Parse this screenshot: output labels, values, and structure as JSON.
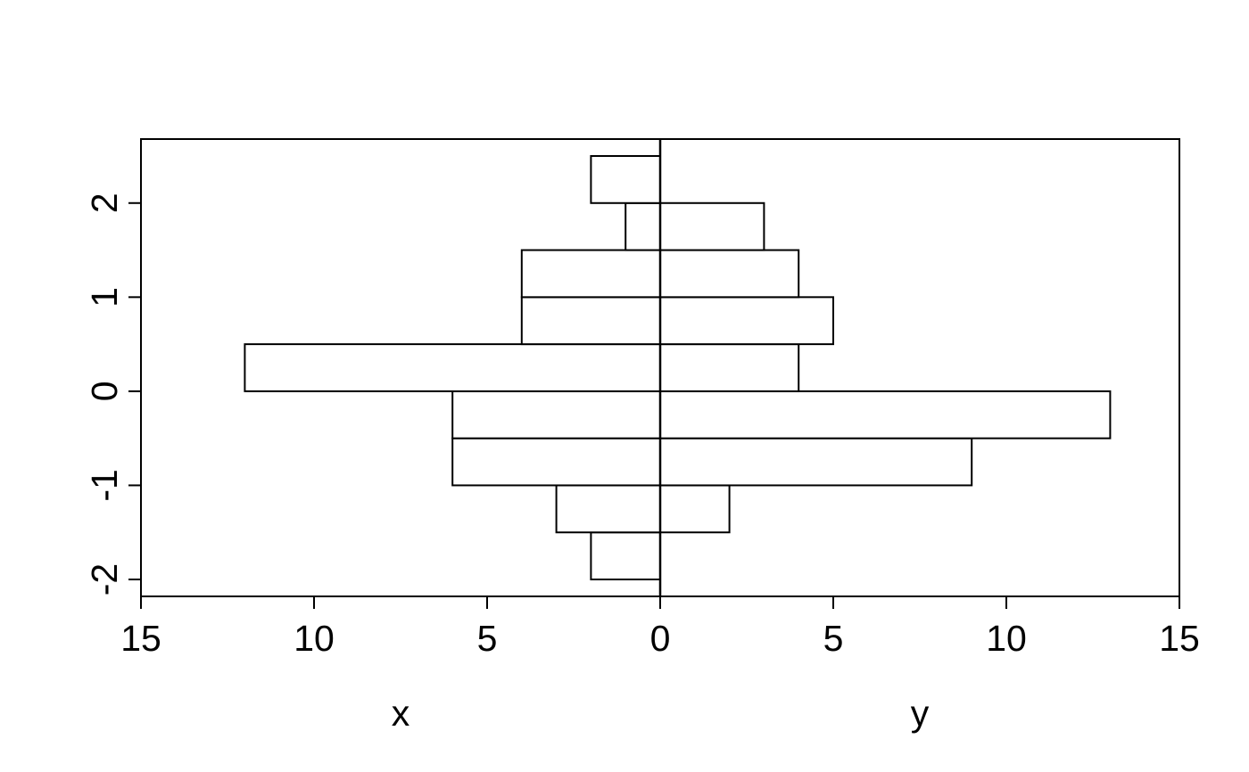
{
  "chart_data": {
    "type": "bar",
    "subtype": "back-to-back-horizontal-histogram",
    "title": "",
    "xlabel_left": "x",
    "xlabel_right": "y",
    "orientation": "horizontal",
    "bin_edges": [
      -2,
      -1.5,
      -1,
      -0.5,
      0,
      0.5,
      1,
      1.5,
      2,
      2.5
    ],
    "series": [
      {
        "name": "x",
        "side": "left",
        "counts": [
          2,
          3,
          6,
          6,
          12,
          4,
          4,
          1,
          2
        ]
      },
      {
        "name": "y",
        "side": "right",
        "counts": [
          0,
          2,
          9,
          13,
          4,
          5,
          4,
          3,
          0
        ]
      }
    ],
    "x_axis": {
      "center_tick": "0",
      "ticks_left": [
        15,
        10,
        5
      ],
      "ticks_right": [
        5,
        10,
        15
      ],
      "max": 15
    },
    "y_axis": {
      "ticks": [
        2,
        1,
        0,
        -1,
        -2
      ],
      "ylim": [
        -2,
        2.5
      ]
    },
    "legend": null,
    "grid": false,
    "colors": {
      "bar_fill": "#ffffff",
      "bar_border": "#000000",
      "axis": "#000000",
      "background": "#ffffff"
    }
  }
}
